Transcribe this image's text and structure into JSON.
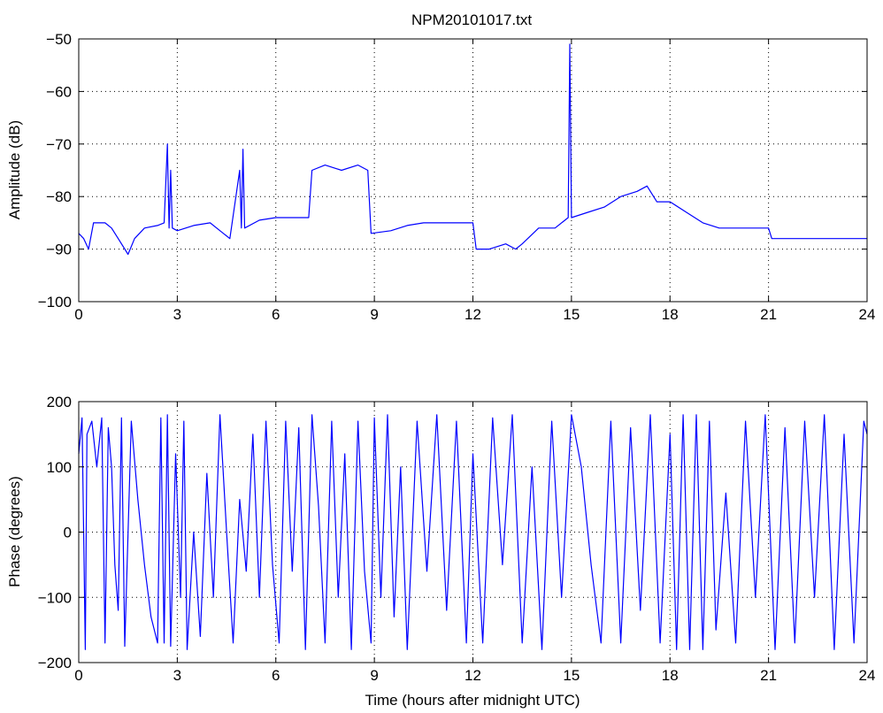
{
  "title": "NPM20101017.txt",
  "colors": {
    "line": "#0000ff",
    "axes": "#000000",
    "grid": "#000000",
    "background": "#ffffff"
  },
  "chart_data": [
    {
      "type": "line",
      "title": "NPM20101017.txt",
      "xlabel": "",
      "ylabel": "Amplitude (dB)",
      "xlim": [
        0,
        24
      ],
      "ylim": [
        -100,
        -50
      ],
      "xticks": [
        0,
        3,
        6,
        9,
        12,
        15,
        18,
        21,
        24
      ],
      "yticks": [
        -100,
        -90,
        -80,
        -70,
        -60,
        -50
      ],
      "grid": true,
      "series": [
        {
          "values": [
            [
              0.0,
              -87
            ],
            [
              0.15,
              -88
            ],
            [
              0.3,
              -90
            ],
            [
              0.45,
              -85
            ],
            [
              0.8,
              -85
            ],
            [
              1.0,
              -86
            ],
            [
              1.2,
              -88
            ],
            [
              1.5,
              -91
            ],
            [
              1.7,
              -88
            ],
            [
              2.0,
              -86
            ],
            [
              2.4,
              -85.5
            ],
            [
              2.6,
              -85
            ],
            [
              2.7,
              -70
            ],
            [
              2.75,
              -86
            ],
            [
              2.8,
              -75
            ],
            [
              2.85,
              -86
            ],
            [
              3.0,
              -86.5
            ],
            [
              3.5,
              -85.5
            ],
            [
              4.0,
              -85
            ],
            [
              4.4,
              -87
            ],
            [
              4.6,
              -88
            ],
            [
              4.9,
              -75
            ],
            [
              4.95,
              -86
            ],
            [
              5.0,
              -71
            ],
            [
              5.05,
              -86
            ],
            [
              5.5,
              -84.5
            ],
            [
              6.0,
              -84
            ],
            [
              6.5,
              -84
            ],
            [
              7.0,
              -84
            ],
            [
              7.1,
              -75
            ],
            [
              7.5,
              -74
            ],
            [
              8.0,
              -75
            ],
            [
              8.5,
              -74
            ],
            [
              8.8,
              -75
            ],
            [
              8.9,
              -87
            ],
            [
              9.5,
              -86.5
            ],
            [
              10.0,
              -85.5
            ],
            [
              10.5,
              -85
            ],
            [
              11.0,
              -85
            ],
            [
              11.5,
              -85
            ],
            [
              12.0,
              -85
            ],
            [
              12.1,
              -90
            ],
            [
              12.5,
              -90
            ],
            [
              13.0,
              -89
            ],
            [
              13.3,
              -90
            ],
            [
              13.5,
              -89
            ],
            [
              14.0,
              -86
            ],
            [
              14.5,
              -86
            ],
            [
              14.9,
              -84
            ],
            [
              14.95,
              -51
            ],
            [
              15.0,
              -84
            ],
            [
              15.5,
              -83
            ],
            [
              16.0,
              -82
            ],
            [
              16.5,
              -80
            ],
            [
              17.0,
              -79
            ],
            [
              17.3,
              -78
            ],
            [
              17.6,
              -81
            ],
            [
              18.0,
              -81
            ],
            [
              18.5,
              -83
            ],
            [
              19.0,
              -85
            ],
            [
              19.5,
              -86
            ],
            [
              20.0,
              -86
            ],
            [
              20.5,
              -86
            ],
            [
              21.0,
              -86
            ],
            [
              21.1,
              -88
            ],
            [
              21.5,
              -88
            ],
            [
              22.0,
              -88
            ],
            [
              23.0,
              -88
            ],
            [
              24.0,
              -88
            ]
          ]
        }
      ]
    },
    {
      "type": "line",
      "title": "",
      "xlabel": "Time (hours after midnight UTC)",
      "ylabel": "Phase (degrees)",
      "xlim": [
        0,
        24
      ],
      "ylim": [
        -200,
        200
      ],
      "xticks": [
        0,
        3,
        6,
        9,
        12,
        15,
        18,
        21,
        24
      ],
      "yticks": [
        -200,
        -100,
        0,
        100,
        200
      ],
      "grid": true,
      "series": [
        {
          "values": [
            [
              0.0,
              120
            ],
            [
              0.1,
              175
            ],
            [
              0.2,
              -180
            ],
            [
              0.25,
              150
            ],
            [
              0.4,
              170
            ],
            [
              0.55,
              100
            ],
            [
              0.7,
              175
            ],
            [
              0.8,
              -170
            ],
            [
              0.9,
              160
            ],
            [
              1.0,
              100
            ],
            [
              1.1,
              -50
            ],
            [
              1.2,
              -120
            ],
            [
              1.3,
              175
            ],
            [
              1.4,
              -175
            ],
            [
              1.6,
              170
            ],
            [
              1.8,
              50
            ],
            [
              2.0,
              -50
            ],
            [
              2.2,
              -130
            ],
            [
              2.4,
              -170
            ],
            [
              2.5,
              175
            ],
            [
              2.6,
              -170
            ],
            [
              2.7,
              180
            ],
            [
              2.8,
              -175
            ],
            [
              2.95,
              120
            ],
            [
              3.1,
              -100
            ],
            [
              3.2,
              170
            ],
            [
              3.3,
              -180
            ],
            [
              3.5,
              0
            ],
            [
              3.7,
              -160
            ],
            [
              3.9,
              90
            ],
            [
              4.1,
              -100
            ],
            [
              4.3,
              180
            ],
            [
              4.5,
              0
            ],
            [
              4.7,
              -170
            ],
            [
              4.9,
              50
            ],
            [
              5.1,
              -60
            ],
            [
              5.3,
              150
            ],
            [
              5.5,
              -100
            ],
            [
              5.7,
              170
            ],
            [
              5.9,
              -50
            ],
            [
              6.1,
              -170
            ],
            [
              6.3,
              170
            ],
            [
              6.5,
              -60
            ],
            [
              6.7,
              160
            ],
            [
              6.9,
              -180
            ],
            [
              7.1,
              180
            ],
            [
              7.3,
              40
            ],
            [
              7.5,
              -170
            ],
            [
              7.7,
              170
            ],
            [
              7.9,
              -100
            ],
            [
              8.1,
              120
            ],
            [
              8.3,
              -180
            ],
            [
              8.5,
              170
            ],
            [
              8.7,
              -60
            ],
            [
              8.9,
              -170
            ],
            [
              9.0,
              175
            ],
            [
              9.2,
              -100
            ],
            [
              9.4,
              180
            ],
            [
              9.6,
              -130
            ],
            [
              9.8,
              100
            ],
            [
              10.0,
              -180
            ],
            [
              10.3,
              170
            ],
            [
              10.6,
              -60
            ],
            [
              10.9,
              180
            ],
            [
              11.2,
              -120
            ],
            [
              11.5,
              170
            ],
            [
              11.8,
              -170
            ],
            [
              12.0,
              120
            ],
            [
              12.3,
              -170
            ],
            [
              12.6,
              175
            ],
            [
              12.9,
              -50
            ],
            [
              13.2,
              180
            ],
            [
              13.5,
              -170
            ],
            [
              13.8,
              100
            ],
            [
              14.1,
              -180
            ],
            [
              14.4,
              170
            ],
            [
              14.7,
              -100
            ],
            [
              15.0,
              180
            ],
            [
              15.3,
              100
            ],
            [
              15.6,
              -50
            ],
            [
              15.9,
              -170
            ],
            [
              16.2,
              170
            ],
            [
              16.5,
              -170
            ],
            [
              16.8,
              160
            ],
            [
              17.1,
              -120
            ],
            [
              17.4,
              180
            ],
            [
              17.7,
              -170
            ],
            [
              18.0,
              150
            ],
            [
              18.2,
              -180
            ],
            [
              18.4,
              180
            ],
            [
              18.6,
              -180
            ],
            [
              18.8,
              180
            ],
            [
              19.0,
              -180
            ],
            [
              19.2,
              170
            ],
            [
              19.4,
              -150
            ],
            [
              19.7,
              60
            ],
            [
              20.0,
              -170
            ],
            [
              20.3,
              170
            ],
            [
              20.6,
              -100
            ],
            [
              20.9,
              180
            ],
            [
              21.2,
              -180
            ],
            [
              21.5,
              160
            ],
            [
              21.8,
              -170
            ],
            [
              22.1,
              170
            ],
            [
              22.4,
              -100
            ],
            [
              22.7,
              180
            ],
            [
              23.0,
              -180
            ],
            [
              23.3,
              150
            ],
            [
              23.6,
              -170
            ],
            [
              23.9,
              170
            ],
            [
              24.0,
              150
            ]
          ]
        }
      ]
    }
  ]
}
